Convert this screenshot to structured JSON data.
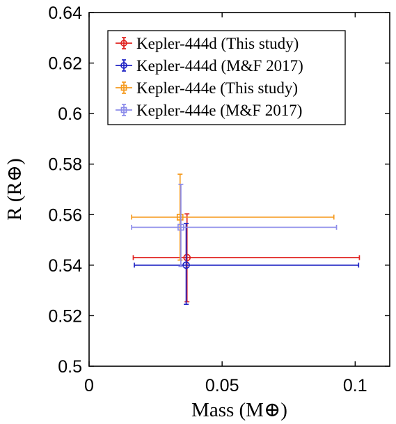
{
  "chart_data": {
    "type": "scatter",
    "xlabel": "Mass (M⊕)",
    "ylabel": "R (R⊕)",
    "xlim": [
      0,
      0.113
    ],
    "ylim": [
      0.5,
      0.64
    ],
    "x_ticks": [
      {
        "value": 0,
        "label": "0"
      },
      {
        "value": 0.05,
        "label": "0.05"
      },
      {
        "value": 0.1,
        "label": "0.1"
      }
    ],
    "y_ticks": [
      {
        "value": 0.5,
        "label": "0.5"
      },
      {
        "value": 0.52,
        "label": "0.52"
      },
      {
        "value": 0.54,
        "label": "0.54"
      },
      {
        "value": 0.56,
        "label": "0.56"
      },
      {
        "value": 0.58,
        "label": "0.58"
      },
      {
        "value": 0.6,
        "label": "0.6"
      },
      {
        "value": 0.62,
        "label": "0.62"
      },
      {
        "value": 0.64,
        "label": "0.64"
      }
    ],
    "grid": false,
    "legend_position": "top-left",
    "series": [
      {
        "name": "Kepler-444d (This study)",
        "color": "#e0221f",
        "marker": "circle",
        "x": 0.0368,
        "y": 0.543,
        "xerr": [
          0.0202,
          0.0648
        ],
        "yerr": [
          0.0175,
          0.0173
        ]
      },
      {
        "name": "Kepler-444d (M&F 2017)",
        "color": "#1f23c4",
        "marker": "circle",
        "x": 0.0365,
        "y": 0.54,
        "xerr": [
          0.0195,
          0.0648
        ],
        "yerr": [
          0.0155,
          0.0165
        ]
      },
      {
        "name": "Kepler-444e (This study)",
        "color": "#f59a1e",
        "marker": "square",
        "x": 0.0342,
        "y": 0.559,
        "xerr": [
          0.0182,
          0.0578
        ],
        "yerr": [
          0.017,
          0.017
        ]
      },
      {
        "name": "Kepler-444e (M&F 2017)",
        "color": "#8c8cea",
        "marker": "square",
        "x": 0.0345,
        "y": 0.555,
        "xerr": [
          0.0185,
          0.0585
        ],
        "yerr": [
          0.0155,
          0.017
        ]
      }
    ]
  }
}
